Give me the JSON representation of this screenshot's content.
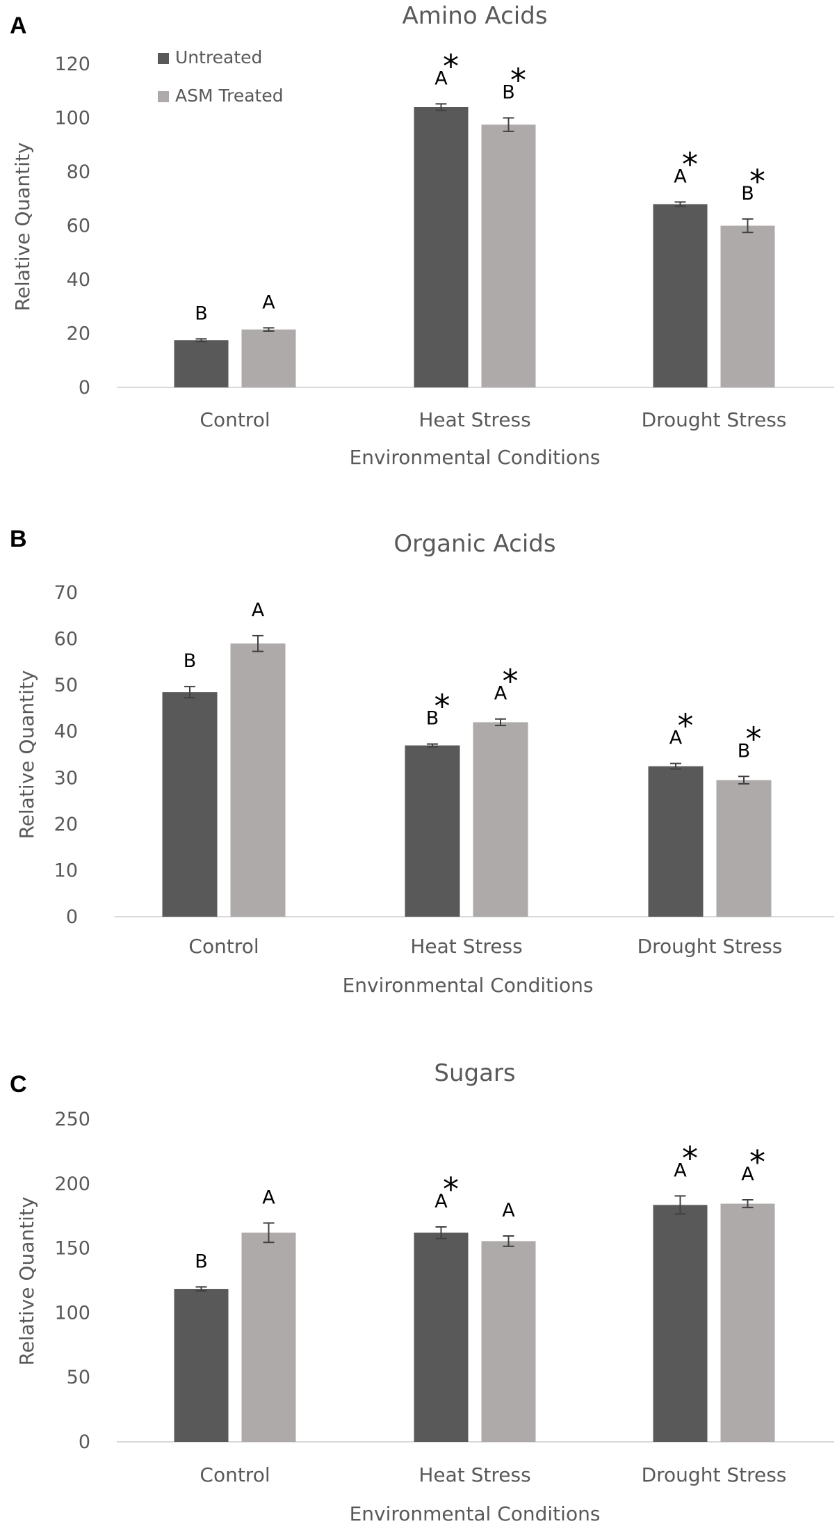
{
  "legend": [
    "Untreated",
    "ASM Treated"
  ],
  "colors": {
    "Untreated": "#595959",
    "ASM Treated": "#aeaaaa"
  },
  "chart_data": [
    {
      "panel": "A",
      "type": "bar",
      "title": "Amino Acids",
      "xlabel": "Environmental Conditions",
      "ylabel": "Relative Quantity",
      "ylim": [
        0,
        120
      ],
      "yticks": [
        0,
        20,
        40,
        60,
        80,
        100,
        120
      ],
      "categories": [
        "Control",
        "Heat Stress",
        "Drought Stress"
      ],
      "series": [
        {
          "name": "Untreated",
          "values": [
            17.5,
            104,
            68
          ],
          "errors": [
            0.5,
            1.2,
            0.8
          ],
          "letters": [
            "B",
            "A",
            "A"
          ],
          "stars": [
            false,
            true,
            true
          ]
        },
        {
          "name": "ASM Treated",
          "values": [
            21.5,
            97.5,
            60
          ],
          "errors": [
            0.6,
            2.5,
            2.5
          ],
          "letters": [
            "A",
            "B",
            "B"
          ],
          "stars": [
            false,
            true,
            true
          ]
        }
      ]
    },
    {
      "panel": "B",
      "type": "bar",
      "title": "Organic Acids",
      "xlabel": "Environmental Conditions",
      "ylabel": "Relative Quantity",
      "ylim": [
        0,
        70
      ],
      "yticks": [
        0,
        10,
        20,
        30,
        40,
        50,
        60,
        70
      ],
      "categories": [
        "Control",
        "Heat Stress",
        "Drought Stress"
      ],
      "series": [
        {
          "name": "Untreated",
          "values": [
            48.5,
            37,
            32.5
          ],
          "errors": [
            1.2,
            0.3,
            0.6
          ],
          "letters": [
            "B",
            "B",
            "A"
          ],
          "stars": [
            false,
            true,
            true
          ]
        },
        {
          "name": "ASM Treated",
          "values": [
            59,
            42,
            29.5
          ],
          "errors": [
            1.7,
            0.7,
            0.8
          ],
          "letters": [
            "A",
            "A",
            "B"
          ],
          "stars": [
            false,
            true,
            true
          ]
        }
      ]
    },
    {
      "panel": "C",
      "type": "bar",
      "title": "Sugars",
      "xlabel": "Environmental Conditions",
      "ylabel": "Relative Quantity",
      "ylim": [
        0,
        250
      ],
      "yticks": [
        0,
        50,
        100,
        150,
        200,
        250
      ],
      "categories": [
        "Control",
        "Heat Stress",
        "Drought Stress"
      ],
      "series": [
        {
          "name": "Untreated",
          "values": [
            118.5,
            162,
            183.5
          ],
          "errors": [
            1.5,
            4.5,
            7
          ],
          "letters": [
            "B",
            "A",
            "A"
          ],
          "stars": [
            false,
            true,
            true
          ]
        },
        {
          "name": "ASM Treated",
          "values": [
            162,
            155.5,
            184.5
          ],
          "errors": [
            7.5,
            4,
            3
          ],
          "letters": [
            "A",
            "A",
            "A"
          ],
          "stars": [
            false,
            false,
            true
          ]
        }
      ]
    }
  ]
}
